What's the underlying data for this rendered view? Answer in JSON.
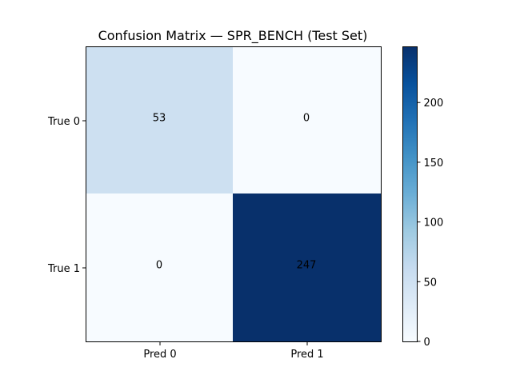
{
  "chart_data": {
    "type": "heatmap",
    "title": "Confusion Matrix — SPR_BENCH (Test Set)",
    "row_labels": [
      "True 0",
      "True 1"
    ],
    "col_labels": [
      "Pred 0",
      "Pred 1"
    ],
    "values": [
      [
        53,
        0
      ],
      [
        0,
        247
      ]
    ],
    "value_range": [
      0,
      247
    ],
    "colormap": "Blues",
    "colorbar": {
      "ticks": [
        0,
        50,
        100,
        150,
        200
      ],
      "tick_labels": [
        "0",
        "50",
        "100",
        "150",
        "200"
      ]
    }
  }
}
